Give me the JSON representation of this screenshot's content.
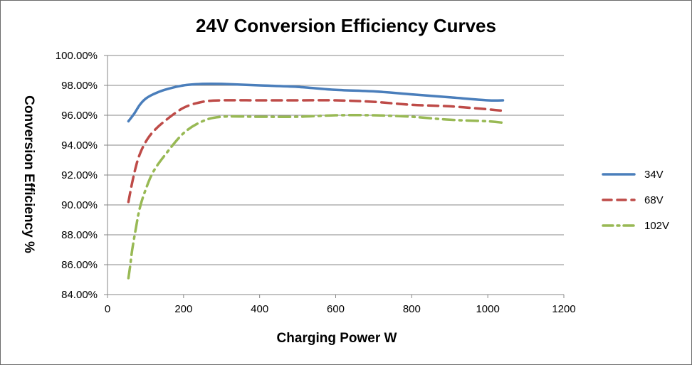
{
  "chart_data": {
    "type": "line",
    "title": "24V Conversion Efficiency Curves",
    "xlabel": "Charging Power W",
    "ylabel": "Conversion Efficiency %",
    "xlim": [
      0,
      1200
    ],
    "ylim": [
      0.84,
      1.0
    ],
    "x_ticks": [
      {
        "value": 0,
        "label": "0"
      },
      {
        "value": 200,
        "label": "200"
      },
      {
        "value": 400,
        "label": "400"
      },
      {
        "value": 600,
        "label": "600"
      },
      {
        "value": 800,
        "label": "800"
      },
      {
        "value": 1000,
        "label": "1000"
      },
      {
        "value": 1200,
        "label": "1200"
      }
    ],
    "y_ticks": [
      {
        "value": 0.84,
        "label": "84.00%"
      },
      {
        "value": 0.86,
        "label": "86.00%"
      },
      {
        "value": 0.88,
        "label": "88.00%"
      },
      {
        "value": 0.9,
        "label": "90.00%"
      },
      {
        "value": 0.92,
        "label": "92.00%"
      },
      {
        "value": 0.94,
        "label": "94.00%"
      },
      {
        "value": 0.96,
        "label": "96.00%"
      },
      {
        "value": 0.98,
        "label": "98.00%"
      },
      {
        "value": 1.0,
        "label": "100.00%"
      }
    ],
    "grid": "horizontal",
    "legend_position": "right",
    "series": [
      {
        "name": "34V",
        "color": "#4a7ebb",
        "dash": "solid",
        "x": [
          55,
          70,
          85,
          100,
          120,
          150,
          200,
          250,
          300,
          400,
          500,
          600,
          700,
          800,
          900,
          1000,
          1040
        ],
        "y": [
          0.956,
          0.961,
          0.967,
          0.971,
          0.974,
          0.977,
          0.98,
          0.981,
          0.981,
          0.98,
          0.979,
          0.977,
          0.976,
          0.974,
          0.972,
          0.97,
          0.97
        ]
      },
      {
        "name": "68V",
        "color": "#be4b48",
        "dash": "dash",
        "x": [
          55,
          65,
          75,
          85,
          100,
          120,
          150,
          200,
          250,
          300,
          400,
          500,
          600,
          700,
          800,
          900,
          1000,
          1040
        ],
        "y": [
          0.902,
          0.915,
          0.926,
          0.934,
          0.942,
          0.949,
          0.956,
          0.965,
          0.969,
          0.97,
          0.97,
          0.97,
          0.97,
          0.969,
          0.967,
          0.966,
          0.964,
          0.963
        ]
      },
      {
        "name": "102V",
        "color": "#98b954",
        "dash": "dashdot",
        "x": [
          55,
          60,
          65,
          75,
          85,
          100,
          120,
          150,
          200,
          250,
          300,
          400,
          500,
          600,
          700,
          800,
          900,
          1000,
          1040
        ],
        "y": [
          0.851,
          0.86,
          0.87,
          0.885,
          0.898,
          0.91,
          0.922,
          0.933,
          0.948,
          0.956,
          0.959,
          0.959,
          0.959,
          0.96,
          0.96,
          0.959,
          0.957,
          0.956,
          0.955
        ]
      }
    ]
  }
}
